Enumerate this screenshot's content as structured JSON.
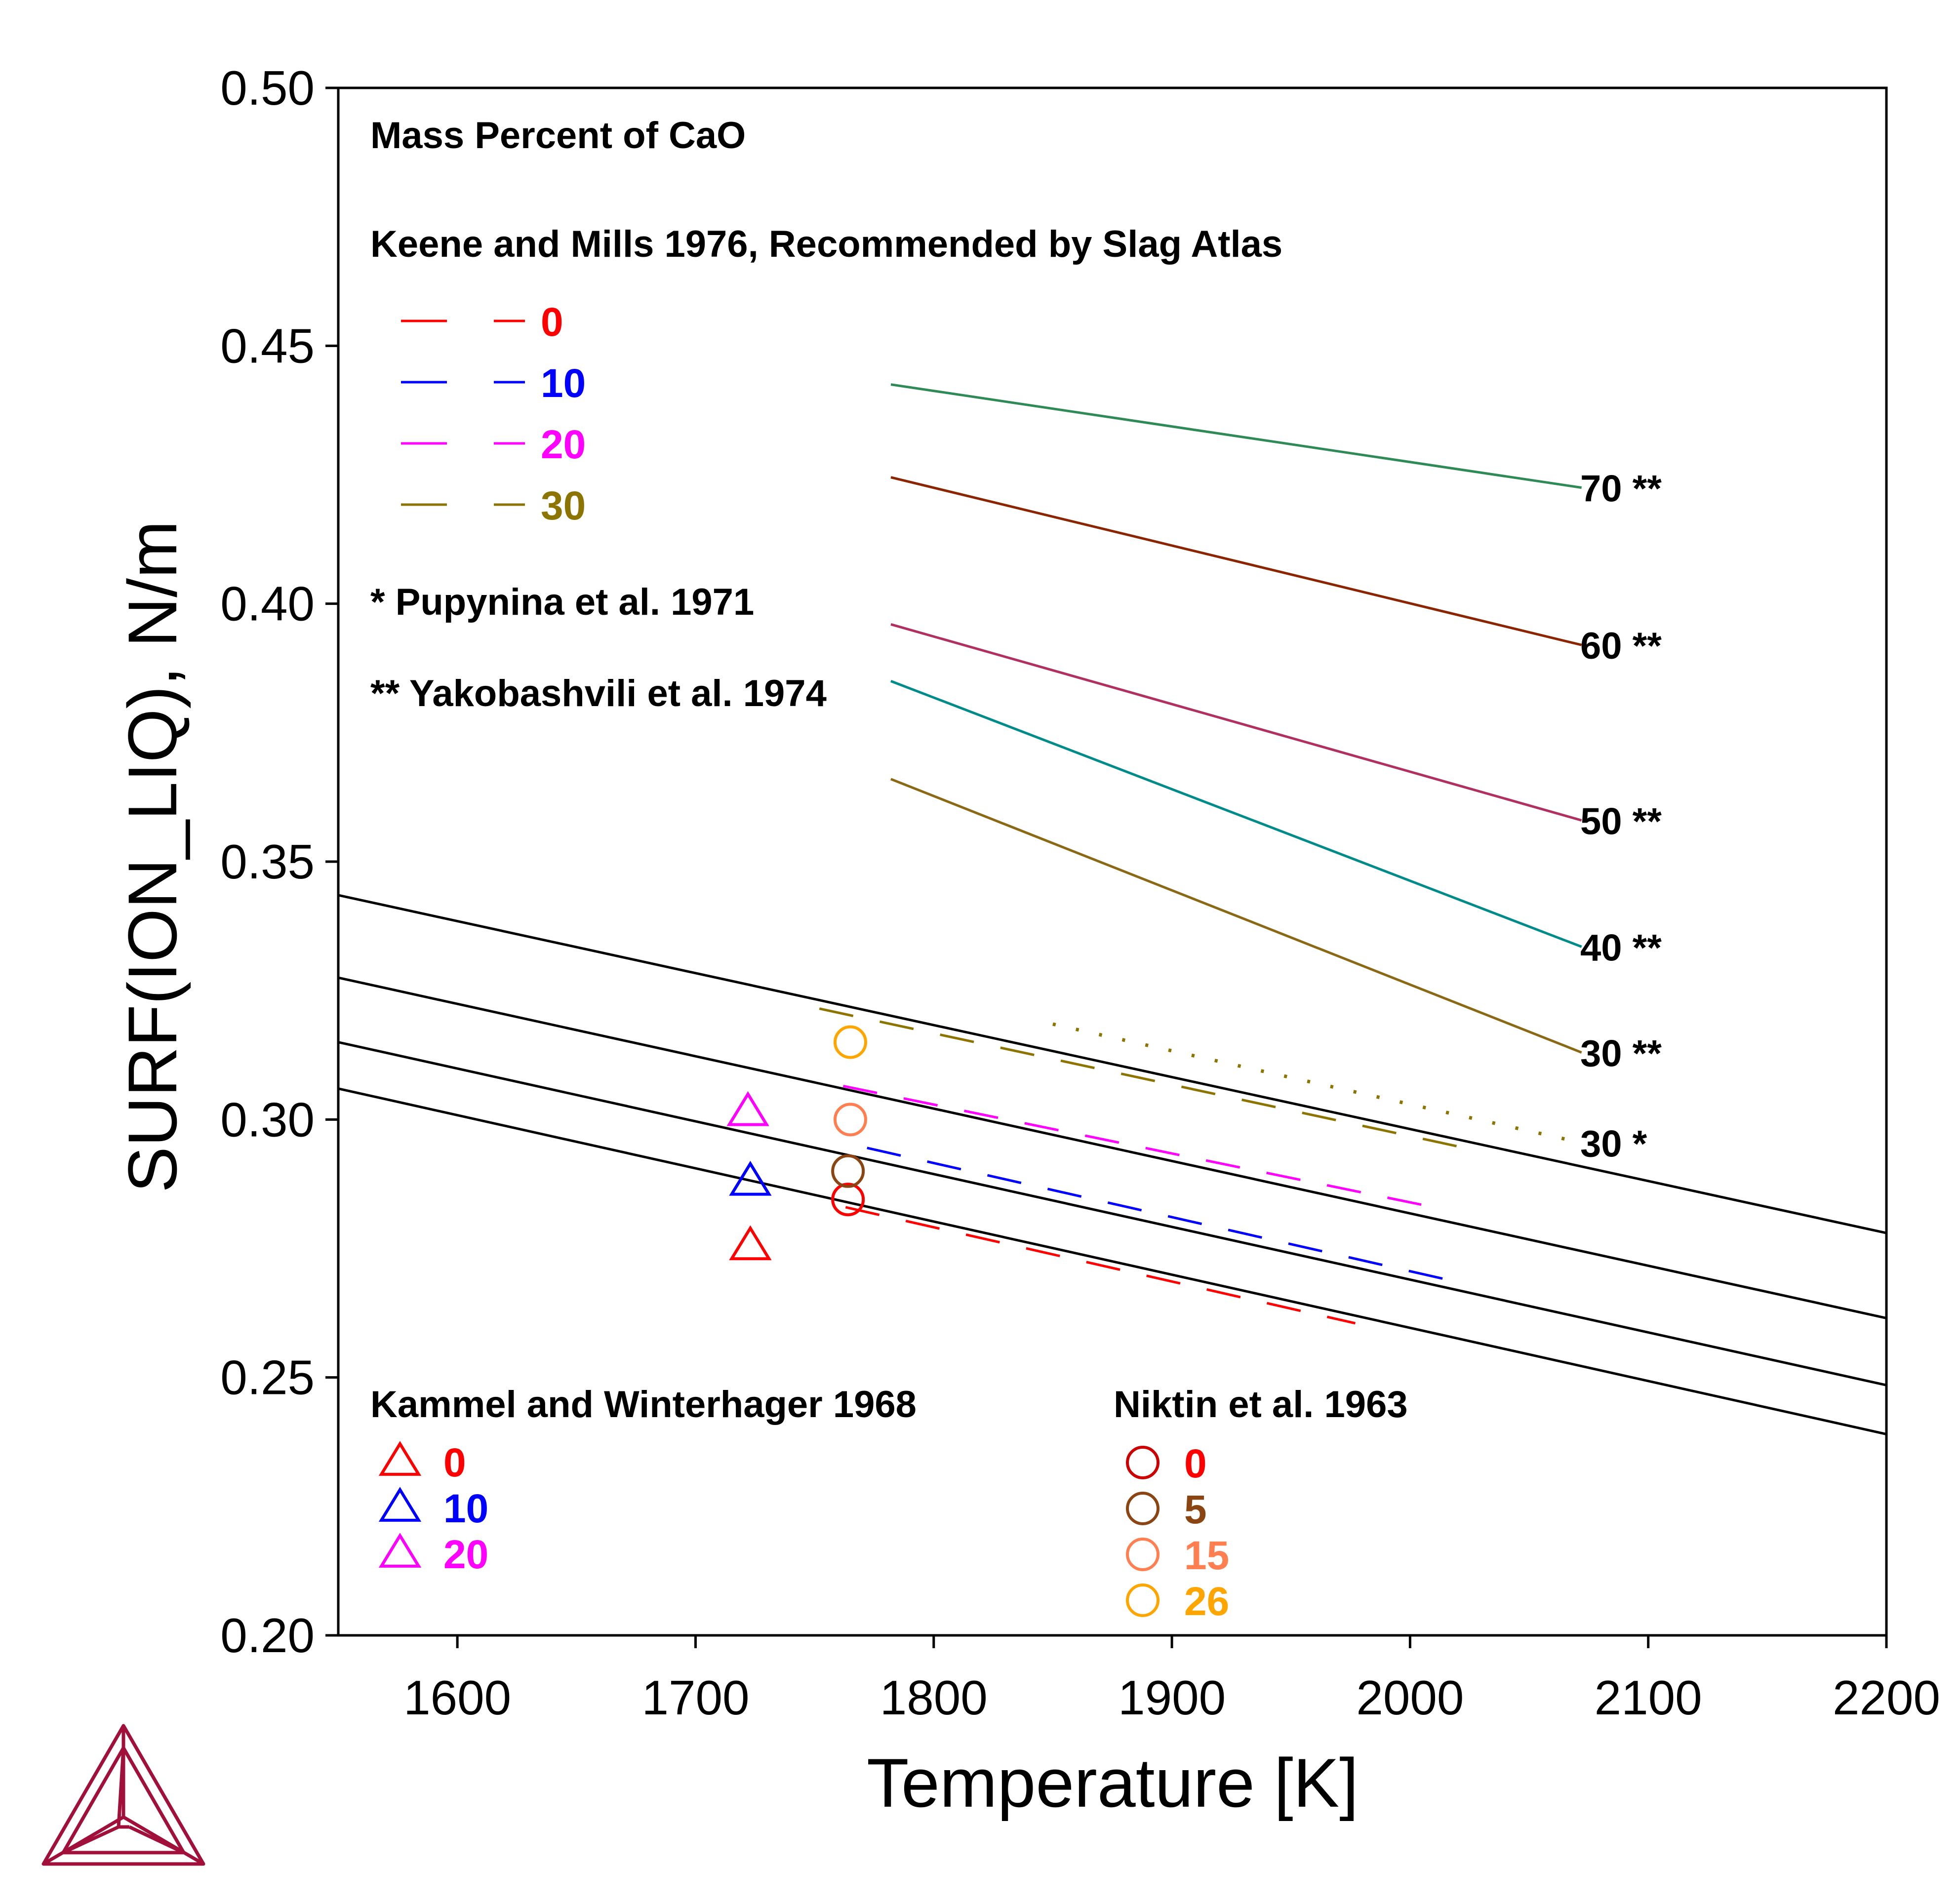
{
  "chart_data": {
    "type": "line",
    "xlabel": "Temperature [K]",
    "ylabel": "SURF(ION_LIQ), N/m",
    "xlim": [
      1550,
      2200
    ],
    "ylim": [
      0.2,
      0.5
    ],
    "x_ticks": [
      "1600",
      "1700",
      "1800",
      "1900",
      "2000",
      "2100",
      "2200"
    ],
    "y_ticks": [
      "0.20",
      "0.25",
      "0.30",
      "0.35",
      "0.40",
      "0.45",
      "0.50"
    ],
    "calculated_lines": [
      {
        "x": [
          1550,
          2200
        ],
        "y": [
          0.306,
          0.239
        ]
      },
      {
        "x": [
          1550,
          2200
        ],
        "y": [
          0.315,
          0.2485
        ]
      },
      {
        "x": [
          1550,
          2200
        ],
        "y": [
          0.3275,
          0.2615
        ]
      },
      {
        "x": [
          1550,
          2200
        ],
        "y": [
          0.3435,
          0.278
        ]
      }
    ],
    "keene_mills_dashed": [
      {
        "name": "0",
        "color": "#ff0000",
        "x": [
          1763,
          1977
        ],
        "y": [
          0.283,
          0.2605
        ]
      },
      {
        "name": "10",
        "color": "#0000ff",
        "x": [
          1772,
          2020
        ],
        "y": [
          0.2945,
          0.2685
        ]
      },
      {
        "name": "20",
        "color": "#ff00ff",
        "x": [
          1762,
          2010
        ],
        "y": [
          0.3065,
          0.283
        ]
      },
      {
        "name": "30",
        "color": "#8b7500",
        "x": [
          1752,
          2023
        ],
        "y": [
          0.3215,
          0.2945
        ]
      }
    ],
    "yakobashvili_lines": [
      {
        "label": "70 **",
        "color": "#2e8b57",
        "x": [
          1782,
          2072
        ],
        "y": [
          0.4425,
          0.4225
        ]
      },
      {
        "label": "60 **",
        "color": "#8b2500",
        "x": [
          1782,
          2072
        ],
        "y": [
          0.4245,
          0.392
        ]
      },
      {
        "label": "50 **",
        "color": "#b03060",
        "x": [
          1782,
          2072
        ],
        "y": [
          0.396,
          0.358
        ]
      },
      {
        "label": "40 **",
        "color": "#008b8b",
        "x": [
          1782,
          2072
        ],
        "y": [
          0.385,
          0.3335
        ]
      },
      {
        "label": "30 **",
        "color": "#8b6914",
        "x": [
          1782,
          2072
        ],
        "y": [
          0.366,
          0.313
        ]
      }
    ],
    "pupynina_line": {
      "label": "30 *",
      "color": "#8b7500",
      "x": [
        1850,
        2072
      ],
      "y": [
        0.3185,
        0.2955
      ]
    },
    "kammel_points": [
      {
        "name": "0",
        "color": "#ff0000",
        "x": 1723,
        "y": 0.2755
      },
      {
        "name": "10",
        "color": "#0000ff",
        "x": 1723,
        "y": 0.288
      },
      {
        "name": "20",
        "color": "#ff00ff",
        "x": 1722,
        "y": 0.3015
      }
    ],
    "niktin_points": [
      {
        "name": "0",
        "color": "#ff0000",
        "legend_color": "#cc0000",
        "x": 1764,
        "y": 0.2845
      },
      {
        "name": "5",
        "color": "#8b4513",
        "legend_color": "#8b4513",
        "x": 1764,
        "y": 0.29
      },
      {
        "name": "15",
        "color": "#ff7f50",
        "legend_color": "#ff7f50",
        "x": 1765,
        "y": 0.3
      },
      {
        "name": "26",
        "color": "#ffa500",
        "legend_color": "#ffa500",
        "x": 1765,
        "y": 0.315
      }
    ]
  },
  "annotations": {
    "mass_percent": "Mass Percent of CaO",
    "keene_title": "Keene and Mills 1976, Recommended by Slag Atlas",
    "pupynina": "*  Pupynina et al. 1971",
    "yakobashvili": "** Yakobashvili et al. 1974",
    "kammel_title": "Kammel and Winterhager 1968",
    "niktin_title": "Niktin et al. 1963"
  },
  "logo": {
    "name": "thermo-calc-logo",
    "color": "#a0103a"
  }
}
